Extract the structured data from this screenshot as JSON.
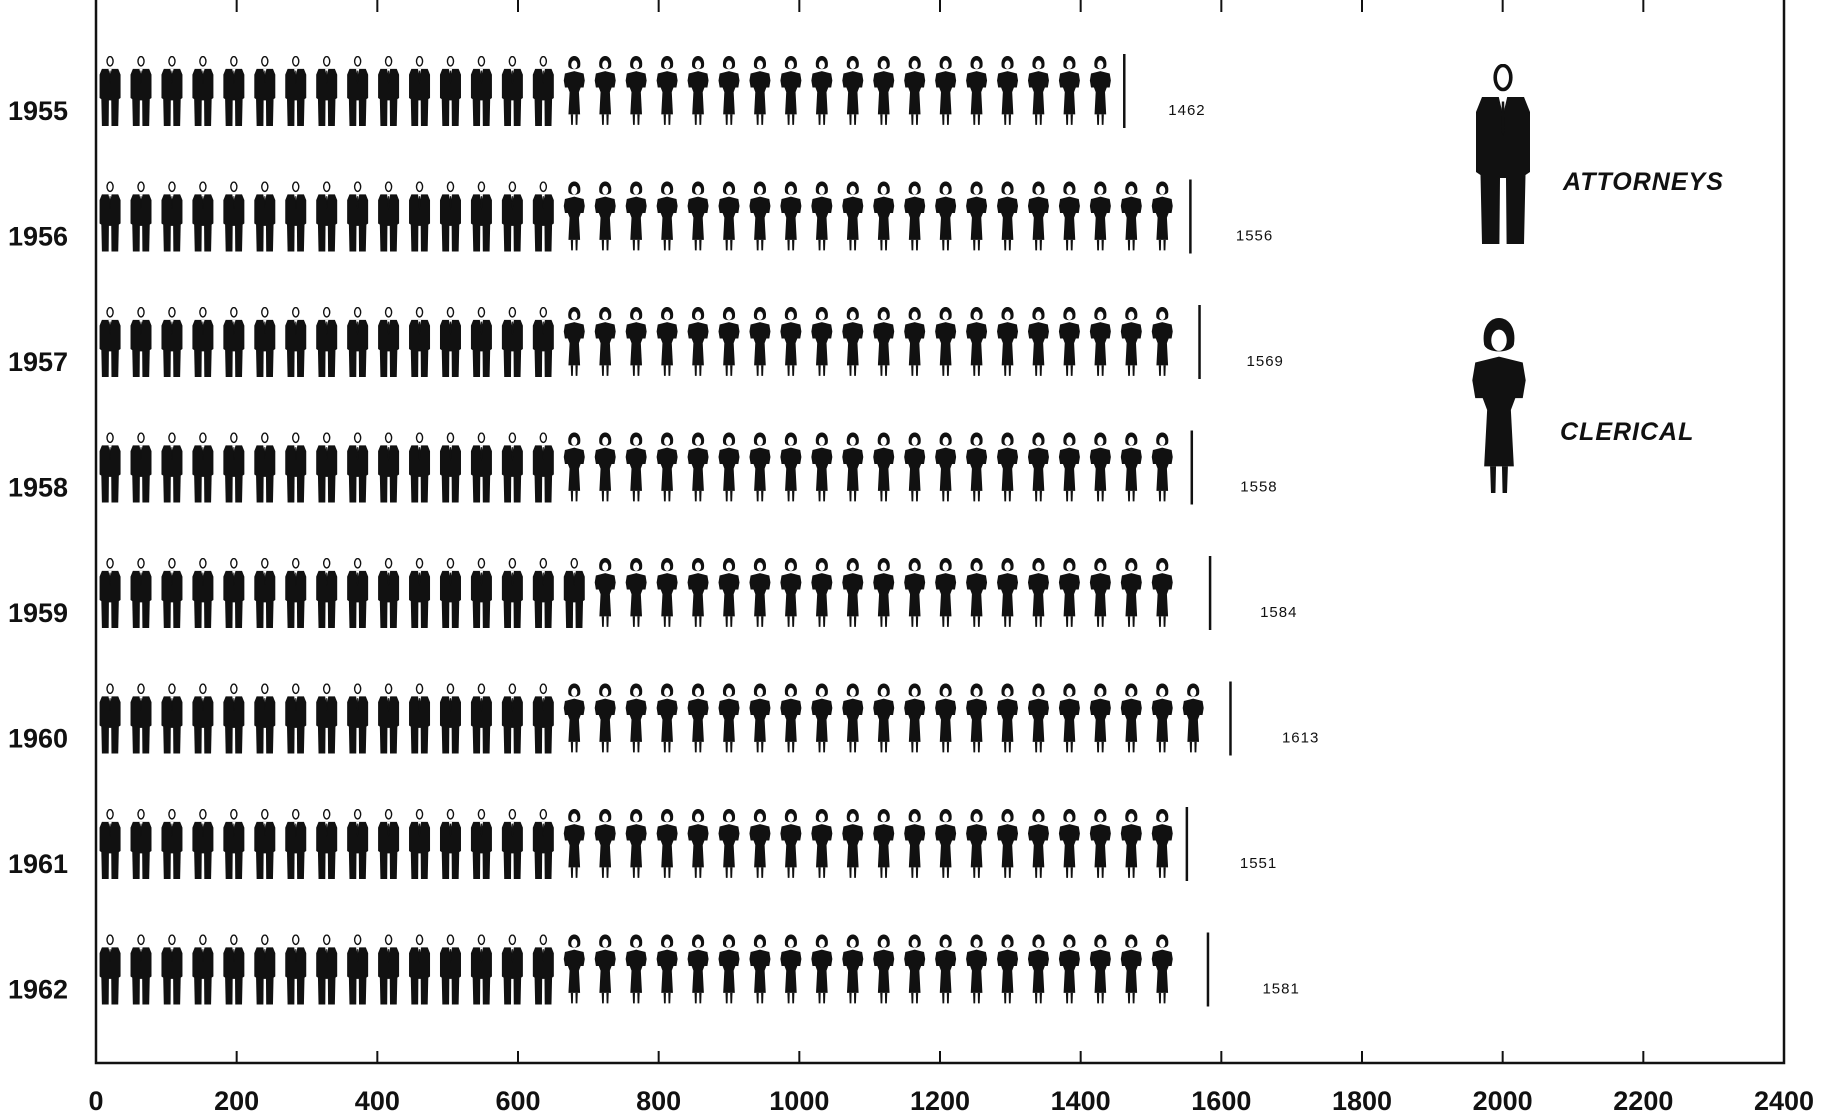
{
  "chart_data": {
    "type": "bar",
    "orientation": "horizontal",
    "pictograph": true,
    "title": "",
    "xlabel": "",
    "ylabel": "",
    "xlim": [
      0,
      2400
    ],
    "x_ticks": [
      "0",
      "200",
      "400",
      "600",
      "800",
      "1000",
      "1200",
      "1400",
      "1600",
      "1800",
      "2000",
      "2200",
      "2400"
    ],
    "categories": [
      "1955",
      "1956",
      "1957",
      "1958",
      "1959",
      "1960",
      "1961",
      "1962"
    ],
    "series": [
      {
        "name": "ATTORNEYS",
        "values": [
          680,
          690,
          690,
          690,
          710,
          700,
          660,
          700
        ]
      },
      {
        "name": "CLERICAL",
        "values": [
          782,
          866,
          879,
          868,
          874,
          913,
          891,
          881
        ]
      }
    ],
    "totals": [
      1462,
      1556,
      1569,
      1558,
      1584,
      1613,
      1551,
      1581
    ],
    "total_labels": [
      "1462",
      "1556",
      "1569",
      "1558",
      "1584",
      "1613",
      "1551",
      "1581"
    ],
    "units_per_figure": 44,
    "legend": {
      "position": "top-right",
      "items": [
        {
          "label": "ATTORNEYS",
          "icon": "attorney-figure-icon"
        },
        {
          "label": "CLERICAL",
          "icon": "clerical-figure-icon"
        }
      ]
    },
    "grid": false,
    "colors": {
      "ink": "#111111",
      "background": "#ffffff"
    }
  }
}
